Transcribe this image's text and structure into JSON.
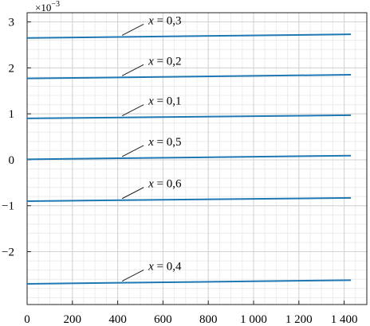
{
  "chart_data": {
    "type": "line",
    "title": "",
    "xlabel": "",
    "ylabel": "",
    "y_multiplier_label": "×10",
    "y_multiplier_exponent": "−3",
    "xlim": [
      0,
      1500
    ],
    "ylim": [
      -3.15,
      3.2
    ],
    "grid": true,
    "x_ticks": [
      0,
      200,
      400,
      600,
      800,
      1000,
      1200,
      1400
    ],
    "x_tick_labels": [
      "0",
      "200",
      "400",
      "600",
      "800",
      "1 000",
      "1 200",
      "1 400"
    ],
    "y_ticks": [
      3,
      2,
      1,
      0,
      -1,
      -2
    ],
    "y_tick_labels": [
      "3",
      "2",
      "1",
      "0",
      "−1",
      "−2"
    ],
    "line_color": "#1f77b4",
    "x": [
      0,
      1430
    ],
    "series": [
      {
        "values": [
          2.65,
          2.73
        ],
        "label": {
          "var": "x",
          "rest": " = 0,3",
          "anchor_x": 430
        }
      },
      {
        "values": [
          1.77,
          1.85
        ],
        "label": {
          "var": "x",
          "rest": " = 0,2",
          "anchor_x": 430
        }
      },
      {
        "values": [
          0.9,
          0.97
        ],
        "label": {
          "var": "x",
          "rest": " = 0,1",
          "anchor_x": 430
        }
      },
      {
        "values": [
          0.01,
          0.09
        ],
        "label": {
          "var": "x",
          "rest": " = 0,5",
          "anchor_x": 430
        }
      },
      {
        "values": [
          -0.9,
          -0.83
        ],
        "label": {
          "var": "x",
          "rest": " = 0,6",
          "anchor_x": 430
        }
      },
      {
        "values": [
          -2.7,
          -2.62
        ],
        "label": {
          "var": "x",
          "rest": " = 0,4",
          "anchor_x": 430
        }
      }
    ]
  }
}
